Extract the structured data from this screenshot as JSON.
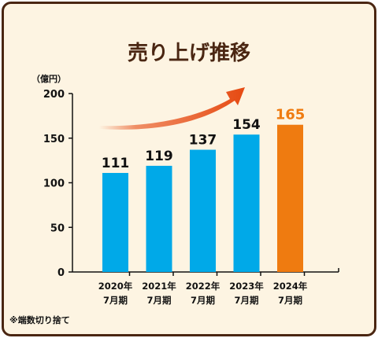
{
  "chart_data": {
    "type": "bar",
    "title": "売り上げ推移",
    "unit_label": "（億円）",
    "categories": [
      [
        "2020年",
        "7月期"
      ],
      [
        "2021年",
        "7月期"
      ],
      [
        "2022年",
        "7月期"
      ],
      [
        "2023年",
        "7月期"
      ],
      [
        "2024年",
        "7月期"
      ]
    ],
    "values": [
      111,
      119,
      137,
      154,
      165
    ],
    "highlight_index": 4,
    "ylim": [
      0,
      200
    ],
    "yticks": [
      0,
      50,
      100,
      150,
      200
    ],
    "grid": false,
    "trend_arrow": true
  },
  "footnote": "※端数切り捨て",
  "colors": {
    "bar": "#00a9e8",
    "highlight_bar": "#ef7b10",
    "highlight_label": "#ef7b10",
    "arrow": "#e64a12",
    "title": "#4a2612",
    "card_bg": "#fdf4e2",
    "border": "#4a2612"
  }
}
